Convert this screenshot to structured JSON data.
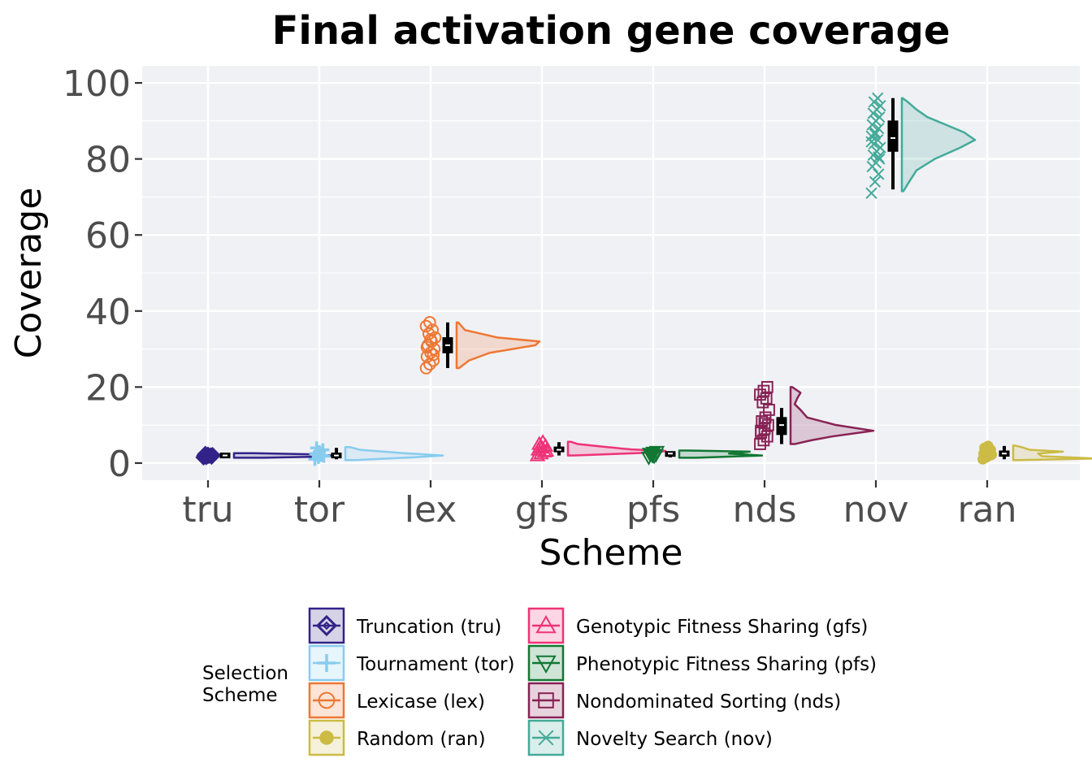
{
  "chart_data": {
    "type": "raincloud",
    "title": "Final activation gene coverage",
    "xlabel": "Scheme",
    "ylabel": "Coverage",
    "ylim": [
      -4.5,
      104.5
    ],
    "yticks": [
      0,
      20,
      40,
      60,
      80,
      100
    ],
    "grid": true,
    "legend": {
      "title_lines": [
        "Selection",
        "Scheme"
      ],
      "placement": "bottom"
    },
    "categories": [
      "tru",
      "tor",
      "lex",
      "gfs",
      "pfs",
      "nds",
      "nov",
      "ran"
    ],
    "series": [
      {
        "key": "tru",
        "name": "Truncation (tru)",
        "color": "#332288",
        "marker": "diamond",
        "points": [
          1.5,
          1.8,
          2,
          2,
          2.2,
          1.7,
          2.4,
          1.9,
          2.1,
          1.6
        ],
        "box": {
          "min": 1.4,
          "q1": 1.8,
          "median": 2,
          "q3": 2.2,
          "max": 2.5
        },
        "density": [
          [
            1.4,
            0.3
          ],
          [
            1.7,
            0.9
          ],
          [
            2.0,
            1.0
          ],
          [
            2.3,
            0.8
          ],
          [
            2.6,
            0.2
          ]
        ],
        "violin_width": 1.0
      },
      {
        "key": "tor",
        "name": "Tournament (tor)",
        "color": "#88CCEE",
        "marker": "plus",
        "points": [
          1,
          1.5,
          2,
          2.5,
          3,
          3.5,
          4,
          2,
          1.8,
          2.2
        ],
        "box": {
          "min": 1.0,
          "q1": 1.7,
          "median": 2,
          "q3": 2.3,
          "max": 4
        },
        "density": [
          [
            0.8,
            0.1
          ],
          [
            1.5,
            0.7
          ],
          [
            2.0,
            1.0
          ],
          [
            2.6,
            0.6
          ],
          [
            3.5,
            0.15
          ],
          [
            4.2,
            0.05
          ]
        ],
        "violin_width": 1.0
      },
      {
        "key": "lex",
        "name": "Lexicase (lex)",
        "color": "#EE7733",
        "marker": "circle",
        "points": [
          25,
          26,
          27,
          28,
          29,
          30,
          31,
          32,
          33,
          34,
          35,
          36,
          37,
          28.5,
          30.5,
          32.5
        ],
        "box": {
          "min": 25,
          "q1": 29,
          "median": 31,
          "q3": 33,
          "max": 37
        },
        "density": [
          [
            25,
            0.03
          ],
          [
            27,
            0.15
          ],
          [
            29,
            0.4
          ],
          [
            31,
            0.95
          ],
          [
            32,
            1.0
          ],
          [
            33,
            0.5
          ],
          [
            35,
            0.1
          ],
          [
            37,
            0.02
          ]
        ],
        "violin_width": 0.85
      },
      {
        "key": "gfs",
        "name": "Genotypic Fitness Sharing (gfs)",
        "color": "#EE3377",
        "marker": "triangle-up",
        "points": [
          2,
          2.5,
          3,
          3.5,
          4,
          4.5,
          5,
          5.5,
          3.2,
          4.2
        ],
        "box": {
          "min": 2,
          "q1": 3,
          "median": 3.5,
          "q3": 4.2,
          "max": 5.5
        },
        "density": [
          [
            2,
            0.05
          ],
          [
            2.8,
            0.9
          ],
          [
            3.2,
            1.0
          ],
          [
            3.6,
            0.65
          ],
          [
            4.2,
            0.4
          ],
          [
            5,
            0.1
          ],
          [
            5.6,
            0.03
          ]
        ],
        "violin_width": 1.0
      },
      {
        "key": "pfs",
        "name": "Phenotypic Fitness Sharing (pfs)",
        "color": "#117733",
        "marker": "triangle-down",
        "points": [
          1.5,
          2,
          2.2,
          2.5,
          2.8,
          3,
          2.4,
          1.8
        ],
        "box": {
          "min": 1.5,
          "q1": 2.0,
          "median": 2.5,
          "q3": 2.8,
          "max": 3
        },
        "density": [
          [
            1.4,
            0.2
          ],
          [
            2.0,
            1.0
          ],
          [
            2.5,
            0.6
          ],
          [
            3.0,
            0.85
          ],
          [
            3.3,
            0.1
          ]
        ],
        "violin_width": 0.85
      },
      {
        "key": "nds",
        "name": "Nondominated Sorting (nds)",
        "color": "#882255",
        "marker": "square",
        "points": [
          5,
          6,
          7,
          8,
          9,
          10,
          11,
          12,
          14,
          16,
          17,
          18,
          19,
          20,
          8.5,
          10.5
        ],
        "box": {
          "min": 5,
          "q1": 7.5,
          "median": 10,
          "q3": 12,
          "max": 14.5
        },
        "density": [
          [
            5,
            0.05
          ],
          [
            6,
            0.25
          ],
          [
            7,
            0.5
          ],
          [
            8.5,
            1.0
          ],
          [
            10,
            0.55
          ],
          [
            12,
            0.2
          ],
          [
            14,
            0.12
          ],
          [
            15.5,
            0.05
          ],
          [
            17,
            0.08
          ],
          [
            18.5,
            0.12
          ],
          [
            20,
            0.02
          ]
        ],
        "violin_width": 0.85
      },
      {
        "key": "nov",
        "name": "Novelty Search (nov)",
        "color": "#44AA99",
        "marker": "cross",
        "points": [
          71,
          74,
          76,
          78,
          79,
          80,
          81,
          82,
          83,
          84,
          85,
          86,
          87,
          88,
          89,
          90,
          91,
          92,
          93,
          94,
          95,
          96,
          84.5,
          86.5,
          80.5
        ],
        "box": {
          "min": 72,
          "q1": 82,
          "median": 85.5,
          "q3": 90,
          "max": 96
        },
        "density": [
          [
            71.5,
            0.02
          ],
          [
            74,
            0.1
          ],
          [
            77,
            0.2
          ],
          [
            80,
            0.45
          ],
          [
            83,
            0.8
          ],
          [
            85,
            1.0
          ],
          [
            87,
            0.85
          ],
          [
            89,
            0.6
          ],
          [
            91,
            0.35
          ],
          [
            93,
            0.2
          ],
          [
            95,
            0.08
          ],
          [
            96,
            0.01
          ]
        ],
        "violin_width": 0.75
      },
      {
        "key": "ran",
        "name": "Random (ran)",
        "color": "#CCBB44",
        "marker": "filled-circle",
        "points": [
          1,
          1.5,
          2,
          2.5,
          3,
          3.5,
          4,
          4.5,
          2.2,
          3.2
        ],
        "box": {
          "min": 1,
          "q1": 1.8,
          "median": 2.5,
          "q3": 3.2,
          "max": 4.5
        },
        "density": [
          [
            0.8,
            0.1
          ],
          [
            1.2,
            1.0
          ],
          [
            1.8,
            0.35
          ],
          [
            2.5,
            0.3
          ],
          [
            3.0,
            0.6
          ],
          [
            3.5,
            0.2
          ],
          [
            4.2,
            0.1
          ],
          [
            4.6,
            0.02
          ]
        ],
        "violin_width": 0.85
      }
    ]
  }
}
